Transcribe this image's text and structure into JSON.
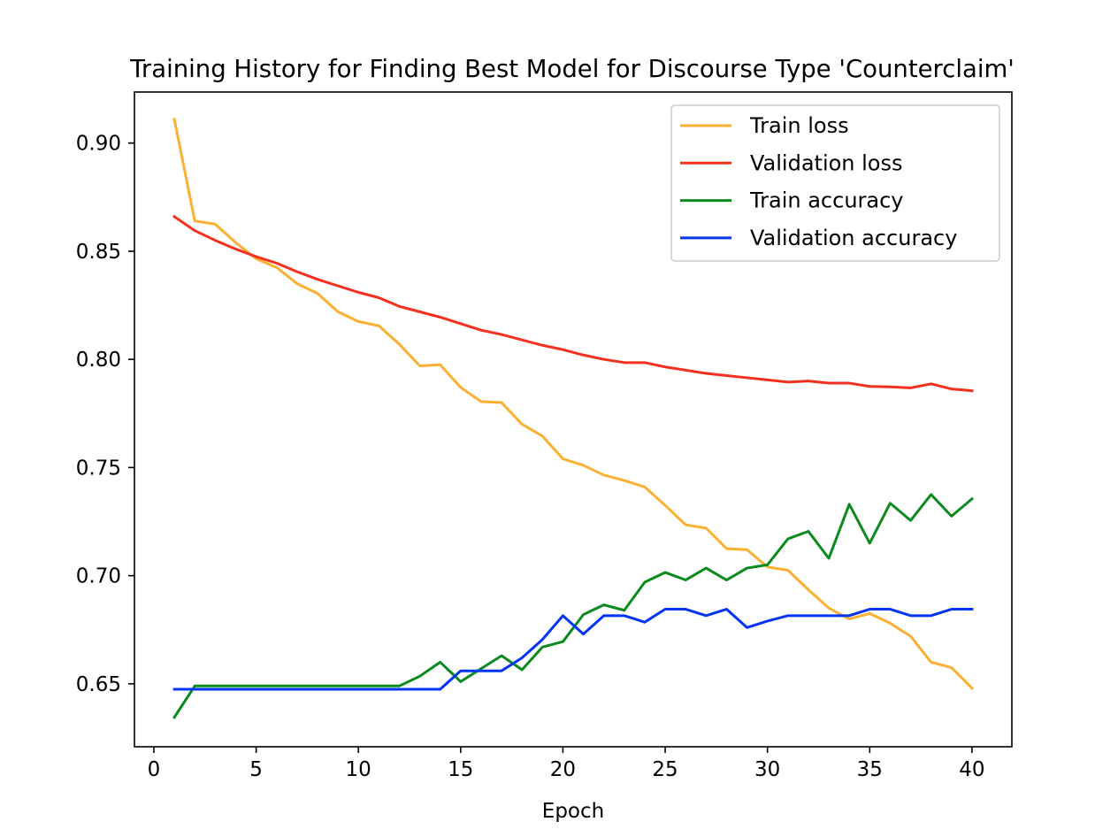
{
  "chart_data": {
    "type": "line",
    "title": "Training History for Finding Best Model for Discourse Type 'Counterclaim'",
    "xlabel": "Epoch",
    "ylabel": "",
    "xlim": [
      -0.95,
      41.95
    ],
    "ylim": [
      0.6209,
      0.9236
    ],
    "xticks": [
      0,
      5,
      10,
      15,
      20,
      25,
      30,
      35,
      40
    ],
    "yticks": [
      0.65,
      0.7,
      0.75,
      0.8,
      0.85,
      0.9
    ],
    "ytick_labels": [
      "0.65",
      "0.70",
      "0.75",
      "0.80",
      "0.85",
      "0.90"
    ],
    "grid": false,
    "legend_position": "top-right",
    "x": [
      1,
      2,
      3,
      4,
      5,
      6,
      7,
      8,
      9,
      10,
      11,
      12,
      13,
      14,
      15,
      16,
      17,
      18,
      19,
      20,
      21,
      22,
      23,
      24,
      25,
      26,
      27,
      28,
      29,
      30,
      31,
      32,
      33,
      34,
      35,
      36,
      37,
      38,
      39,
      40
    ],
    "series": [
      {
        "name": "Train loss",
        "color": "#fbb034",
        "values": [
          0.911,
          0.864,
          0.8625,
          0.854,
          0.8465,
          0.8425,
          0.835,
          0.8305,
          0.822,
          0.8175,
          0.8155,
          0.807,
          0.797,
          0.7975,
          0.787,
          0.7805,
          0.78,
          0.77,
          0.7645,
          0.754,
          0.751,
          0.7465,
          0.744,
          0.741,
          0.7325,
          0.7235,
          0.722,
          0.7125,
          0.712,
          0.704,
          0.7025,
          0.6935,
          0.685,
          0.68,
          0.6825,
          0.678,
          0.672,
          0.66,
          0.6575,
          0.648
        ]
      },
      {
        "name": "Validation loss",
        "color": "#f5301e",
        "values": [
          0.866,
          0.8595,
          0.855,
          0.851,
          0.8475,
          0.8445,
          0.8405,
          0.837,
          0.834,
          0.831,
          0.8285,
          0.8245,
          0.822,
          0.8195,
          0.8165,
          0.8135,
          0.8115,
          0.809,
          0.8065,
          0.8045,
          0.802,
          0.8,
          0.7985,
          0.7985,
          0.7965,
          0.795,
          0.7935,
          0.7925,
          0.7915,
          0.7905,
          0.7895,
          0.79,
          0.789,
          0.789,
          0.7875,
          0.7873,
          0.7868,
          0.7887,
          0.7863,
          0.7855
        ]
      },
      {
        "name": "Train accuracy",
        "color": "#0b8a1e",
        "values": [
          0.6345,
          0.649,
          0.649,
          0.649,
          0.649,
          0.649,
          0.649,
          0.649,
          0.649,
          0.649,
          0.649,
          0.649,
          0.6535,
          0.66,
          0.651,
          0.657,
          0.663,
          0.6565,
          0.667,
          0.6695,
          0.682,
          0.6865,
          0.684,
          0.697,
          0.7015,
          0.698,
          0.7035,
          0.698,
          0.7035,
          0.705,
          0.717,
          0.7205,
          0.708,
          0.733,
          0.715,
          0.7335,
          0.7255,
          0.7375,
          0.7275,
          0.7355
        ]
      },
      {
        "name": "Validation accuracy",
        "color": "#0435f0",
        "values": [
          0.6475,
          0.6475,
          0.6475,
          0.6475,
          0.6475,
          0.6475,
          0.6475,
          0.6475,
          0.6475,
          0.6475,
          0.6475,
          0.6475,
          0.6475,
          0.6475,
          0.656,
          0.656,
          0.656,
          0.662,
          0.6705,
          0.6815,
          0.673,
          0.6815,
          0.6815,
          0.6785,
          0.6845,
          0.6845,
          0.6815,
          0.6845,
          0.676,
          0.679,
          0.6815,
          0.6815,
          0.6815,
          0.6815,
          0.6845,
          0.6845,
          0.6815,
          0.6815,
          0.6845,
          0.6845
        ]
      }
    ]
  }
}
